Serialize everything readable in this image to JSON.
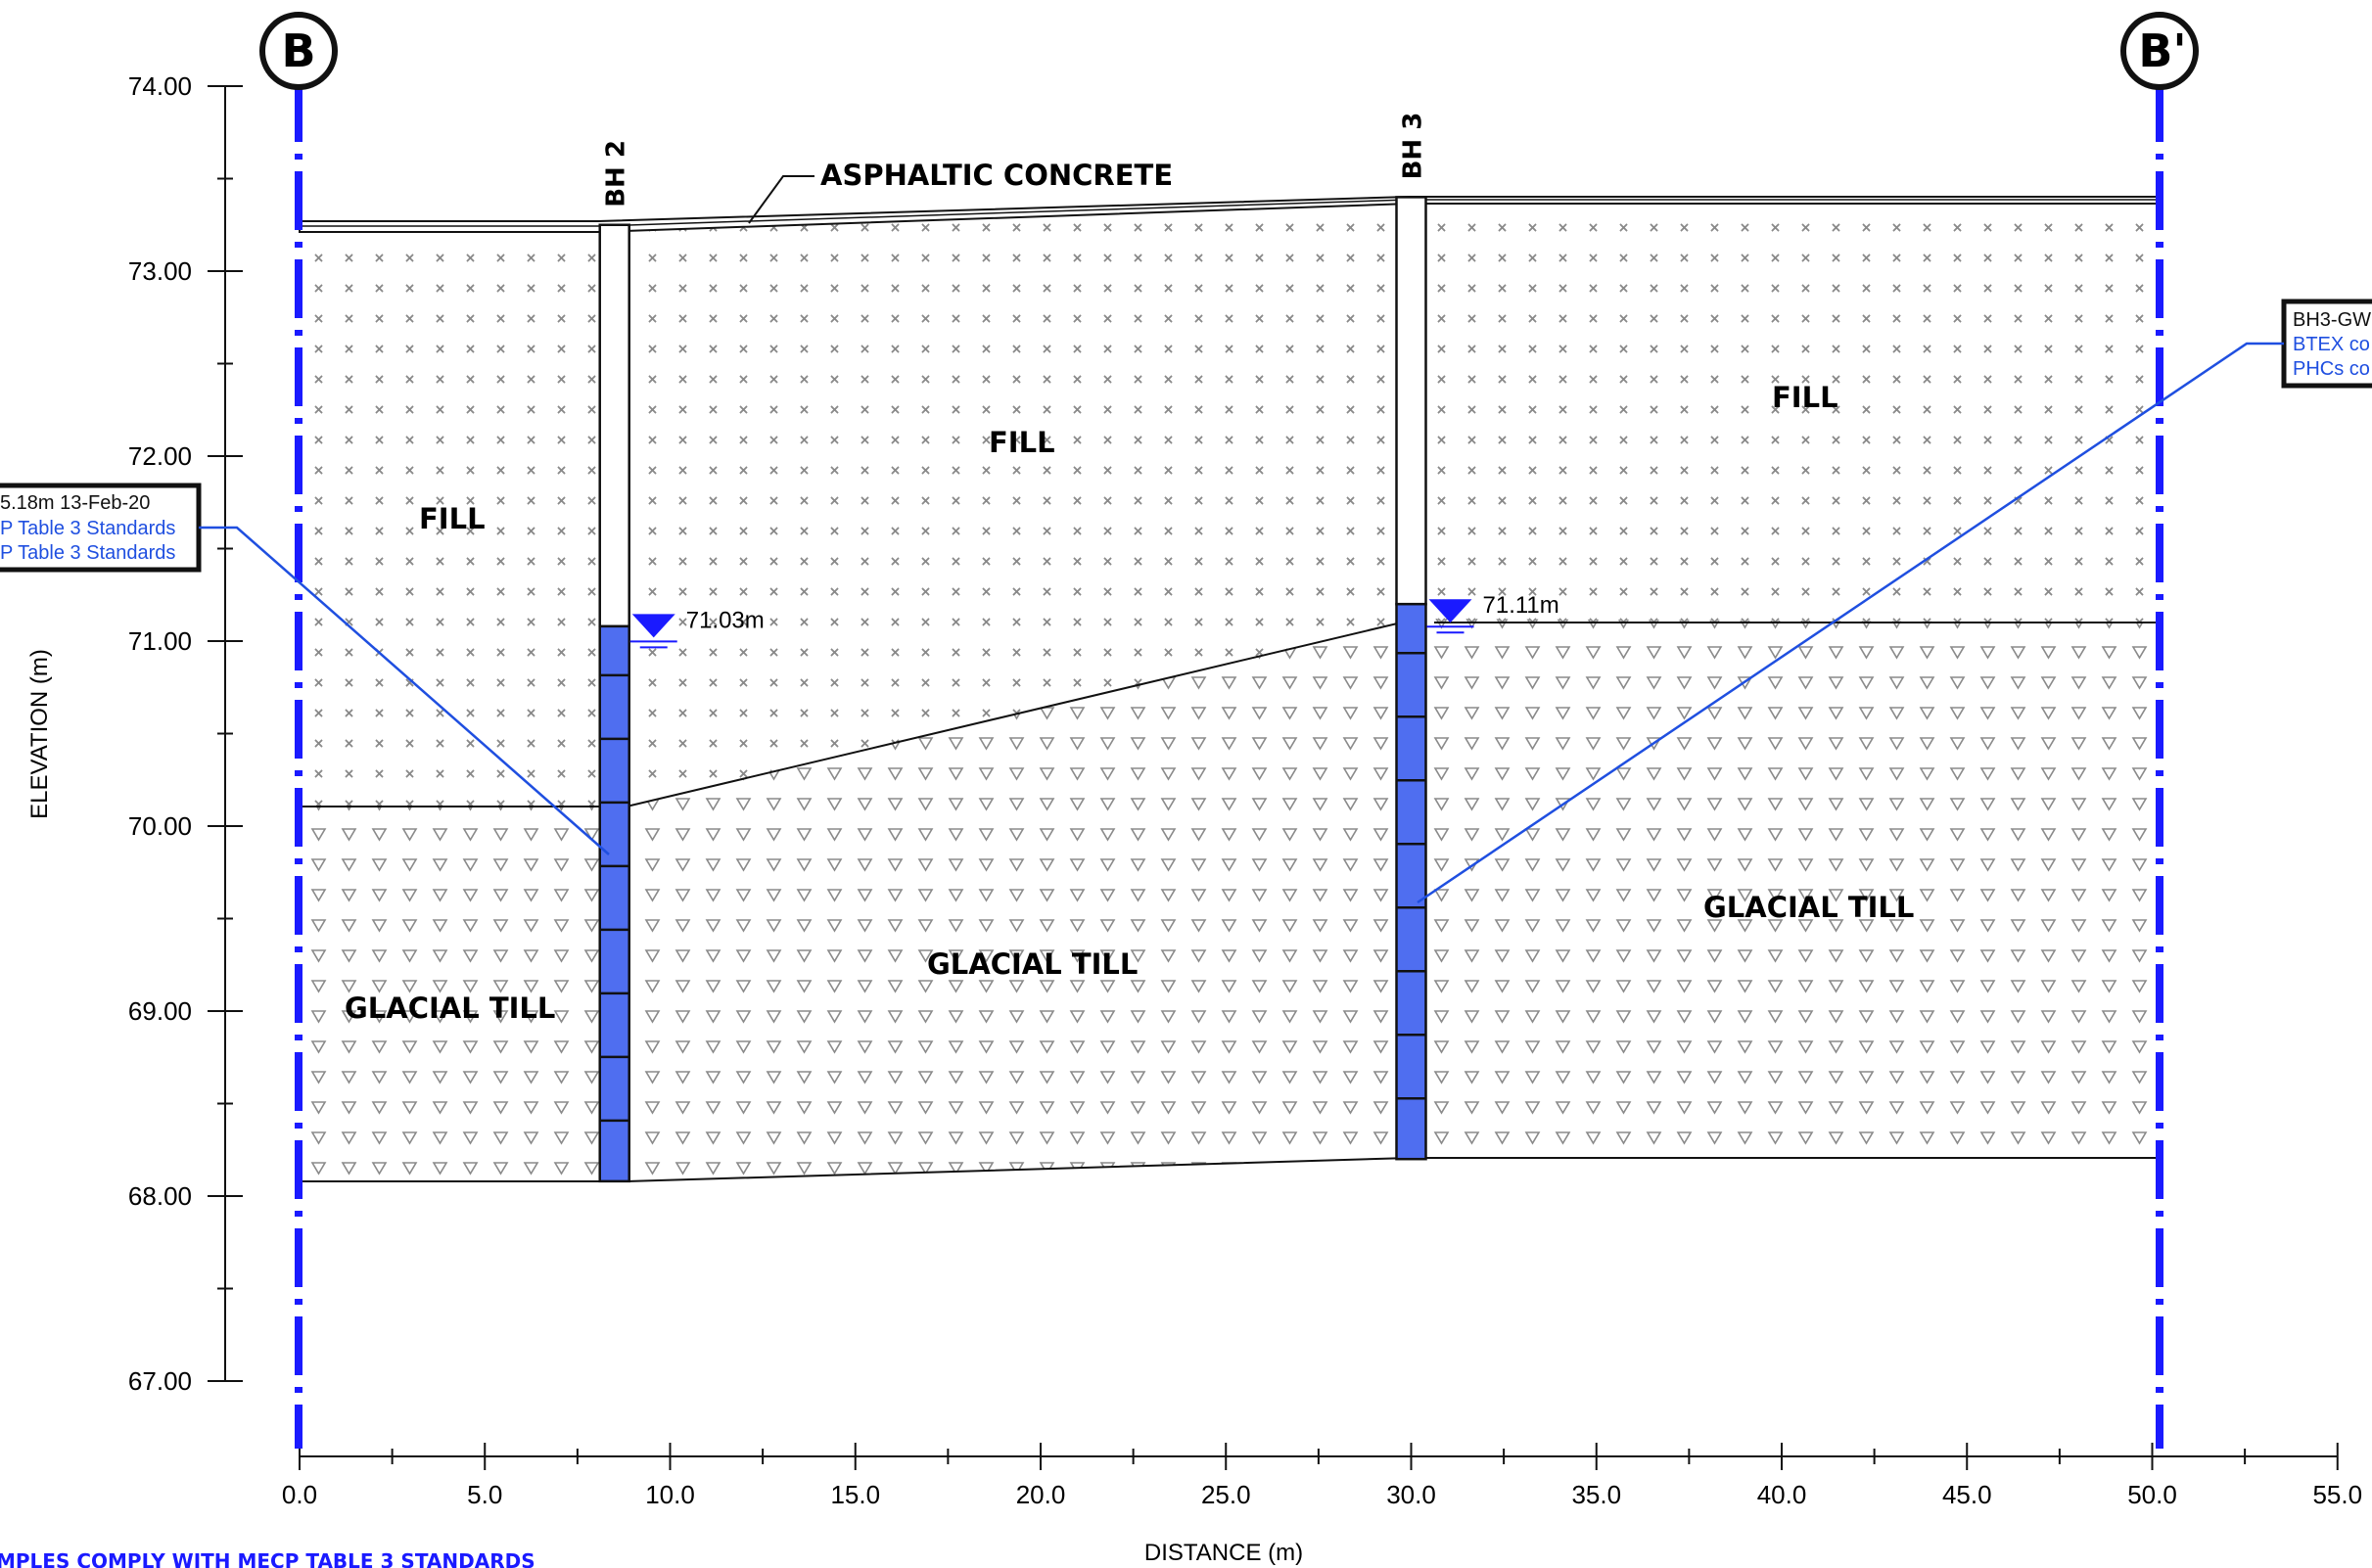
{
  "section": {
    "start_marker": "B",
    "end_marker": "B'",
    "axis_x_label": "DISTANCE (m)",
    "axis_y_label": "ELEVATION (m)",
    "x_ticks": [
      "0.0",
      "5.0",
      "10.0",
      "15.0",
      "20.0",
      "25.0",
      "30.0",
      "35.0",
      "40.0",
      "45.0",
      "50.0",
      "55.0"
    ],
    "y_ticks": [
      "67.00",
      "68.00",
      "69.00",
      "70.00",
      "71.00",
      "72.00",
      "73.00",
      "74.00"
    ],
    "x_range": [
      0,
      55
    ],
    "y_range": [
      67,
      74
    ],
    "footer_note": "MPLES COMPLY WITH MECP TABLE 3 STANDARDS"
  },
  "boreholes": [
    {
      "label": "BH 2",
      "x": 8.5,
      "ground": 73.25,
      "bottom": 68.08,
      "screen_top": 71.08,
      "water_level": 71.03,
      "water_label": "71.03m"
    },
    {
      "label": "BH 3",
      "x": 30.0,
      "ground": 73.4,
      "bottom": 68.2,
      "screen_top": 71.2,
      "water_level": 71.11,
      "water_label": "71.11m"
    }
  ],
  "layers": {
    "surface_label": "ASPHALTIC CONCRETE",
    "fill_labels": [
      "FILL",
      "FILL",
      "FILL"
    ],
    "till_labels": [
      "GLACIAL TILL",
      "GLACIAL TILL",
      "GLACIAL TILL"
    ]
  },
  "callouts": {
    "left": {
      "line1": "5.18m  13-Feb-20",
      "line2": "P Table 3 Standards",
      "line3": "P Table 3 Standards"
    },
    "right": {
      "line1": "BH3-GW",
      "line2": "BTEX co",
      "line3": "PHCs co"
    }
  },
  "colors": {
    "marker_line": "#1a1aff",
    "screen": "#4f6ef0",
    "callout_text": "#1f4fe0",
    "pattern": "#8a8a8a"
  }
}
